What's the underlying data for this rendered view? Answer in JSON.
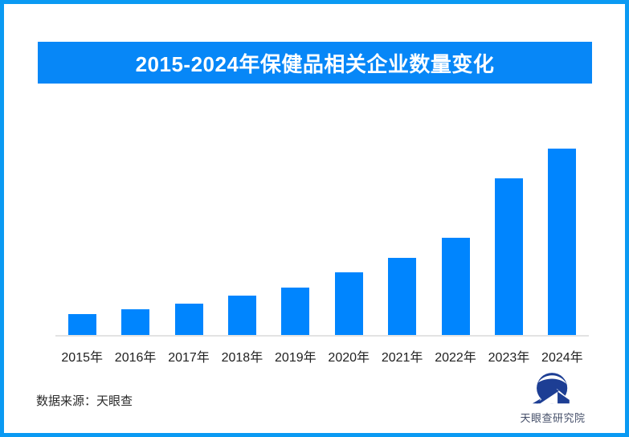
{
  "window": {
    "background": "#ffffff",
    "border_color": "#0a9af3"
  },
  "header": {
    "title": "2015-2024年保健品相关企业数量变化",
    "banner_color": "#0787f7",
    "title_text_color": "#ffffff"
  },
  "chart_data": {
    "type": "bar",
    "title": "2015-2024年保健品相关企业数量变化",
    "categories": [
      "2015年",
      "2016年",
      "2017年",
      "2018年",
      "2019年",
      "2020年",
      "2021年",
      "2022年",
      "2023年",
      "2024年"
    ],
    "values": [
      26,
      32,
      39,
      49,
      59,
      78,
      96,
      121,
      195,
      232
    ],
    "values_note": "no numeric y-axis or data labels shown; values are relative bar heights estimated from pixels",
    "ylim": [
      0,
      240
    ],
    "xlabel": "",
    "ylabel": "",
    "grid": false,
    "legend": "none",
    "bar_color": "#0085fe",
    "axis_line_color": "#e3e3e3",
    "x_tick_color": "#212121"
  },
  "footer": {
    "source_label": "数据来源：天眼查",
    "brand": {
      "name": "天眼查研究院",
      "logo_color": "#1d3e94",
      "text_color": "#46506a"
    }
  }
}
